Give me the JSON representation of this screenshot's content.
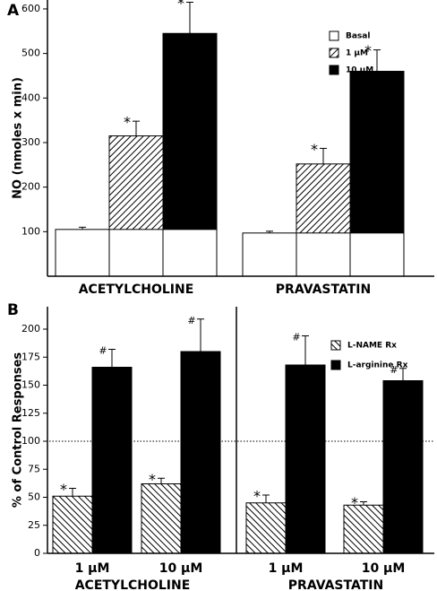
{
  "chart_data": [
    {
      "type": "bar",
      "panel_label": "A",
      "y_label": "NO (nmoles x min)",
      "categories": [
        "ACETYLCHOLINE",
        "PRAVASTATIN"
      ],
      "series": [
        {
          "name": "Basal",
          "color": "#ffffff",
          "values": [
            105,
            97
          ],
          "errors": [
            5,
            4
          ]
        },
        {
          "name": "1 µM",
          "color": "#000000",
          "pattern": "hatch",
          "values": [
            315,
            252
          ],
          "errors": [
            33,
            35
          ],
          "annotations": [
            "*",
            "*"
          ]
        },
        {
          "name": "10 µM",
          "color": "#000000",
          "values": [
            545,
            460
          ],
          "errors": [
            70,
            48
          ],
          "annotations": [
            "*",
            "*"
          ]
        }
      ],
      "base_series": 0,
      "ylim": [
        0,
        620
      ],
      "yticks": [
        100,
        200,
        300,
        400,
        500,
        600
      ]
    },
    {
      "type": "bar",
      "panel_label": "B",
      "y_label": "% of Control Responses",
      "categories": [
        "1 µM",
        "10 µM",
        "1 µM",
        "10 µM"
      ],
      "groups": [
        "ACETYLCHOLINE",
        "PRAVASTATIN"
      ],
      "series": [
        {
          "name": "L-NAME Rx",
          "color": "#000000",
          "pattern": "hatch-back",
          "values": [
            51,
            62,
            45,
            43
          ],
          "errors": [
            7,
            5,
            7,
            3
          ],
          "annotations": [
            "*",
            "*",
            "*",
            "*"
          ]
        },
        {
          "name": "L-arginine Rx",
          "color": "#000000",
          "values": [
            166,
            180,
            168,
            154
          ],
          "errors": [
            16,
            29,
            26,
            11
          ],
          "annotations": [
            "#",
            "#",
            "#",
            "#"
          ]
        }
      ],
      "ylim": [
        0,
        220
      ],
      "yticks": [
        0,
        25,
        50,
        75,
        100,
        125,
        150,
        175,
        200
      ],
      "reference_line": 100
    }
  ]
}
